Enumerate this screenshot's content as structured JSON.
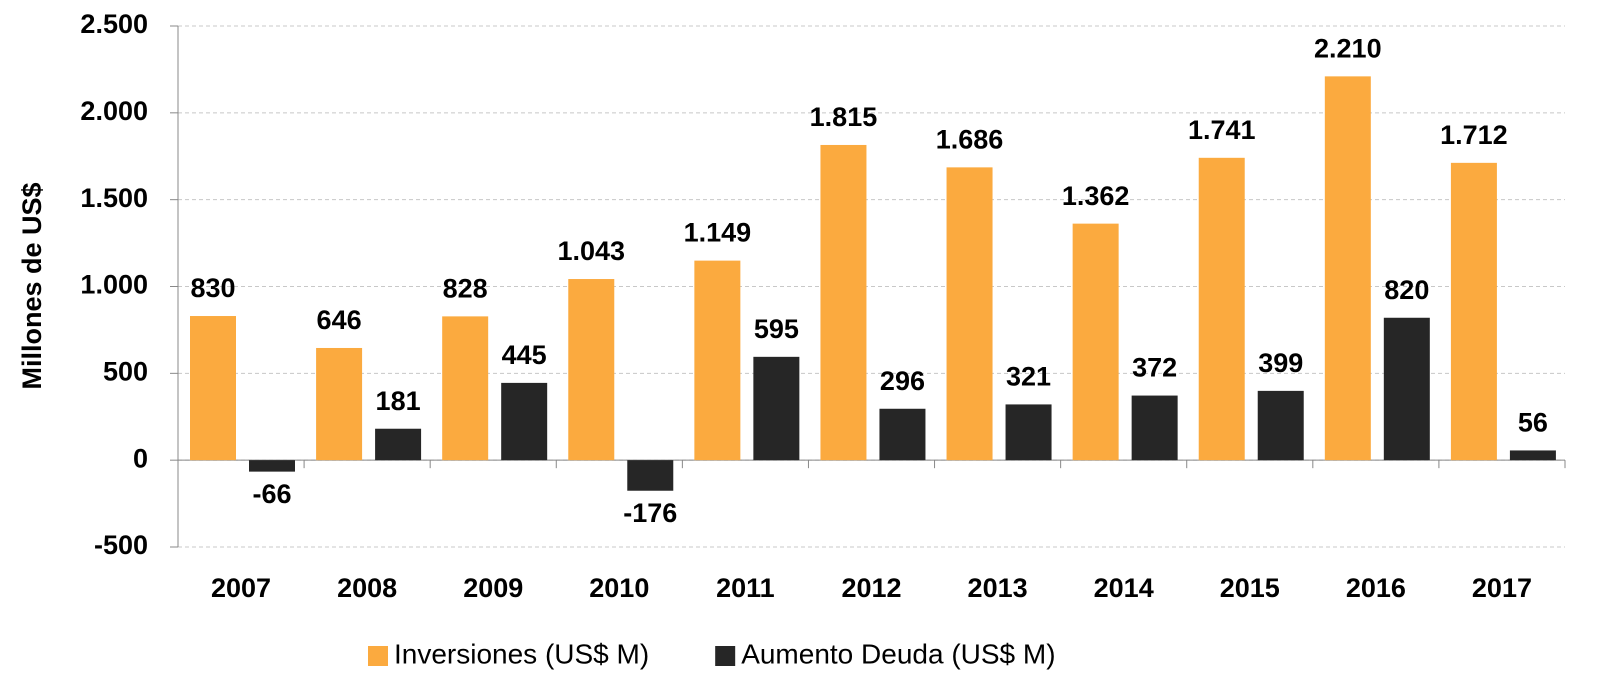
{
  "chart_data": {
    "type": "bar",
    "y_label": "Millones de US$",
    "categories": [
      "2007",
      "2008",
      "2009",
      "2010",
      "2011",
      "2012",
      "2013",
      "2014",
      "2015",
      "2016",
      "2017"
    ],
    "series": [
      {
        "name": "Inversiones (US$ M)",
        "color": "#fbaa3f",
        "values": [
          830,
          646,
          828,
          1043,
          1149,
          1815,
          1686,
          1362,
          1741,
          2210,
          1712
        ],
        "value_labels": [
          "830",
          "646",
          "828",
          "1.043",
          "1.149",
          "1.815",
          "1.686",
          "1.362",
          "1.741",
          "2.210",
          "1.712"
        ]
      },
      {
        "name": "Aumento Deuda (US$ M)",
        "color": "#262626",
        "values": [
          -66,
          181,
          445,
          -176,
          595,
          296,
          321,
          372,
          399,
          820,
          56
        ],
        "value_labels": [
          "-66",
          "181",
          "445",
          "-176",
          "595",
          "296",
          "321",
          "372",
          "399",
          "820",
          "56"
        ]
      }
    ],
    "ylim": [
      -500,
      2500
    ],
    "yticks": [
      -500,
      0,
      500,
      {
        "value": 1000,
        "label": "1.000"
      },
      {
        "value": 1500,
        "label": "1.500"
      },
      {
        "value": 2000,
        "label": "2.000"
      },
      {
        "value": 2500,
        "label": "2.500"
      }
    ],
    "grid": true,
    "legend": "bottom"
  }
}
